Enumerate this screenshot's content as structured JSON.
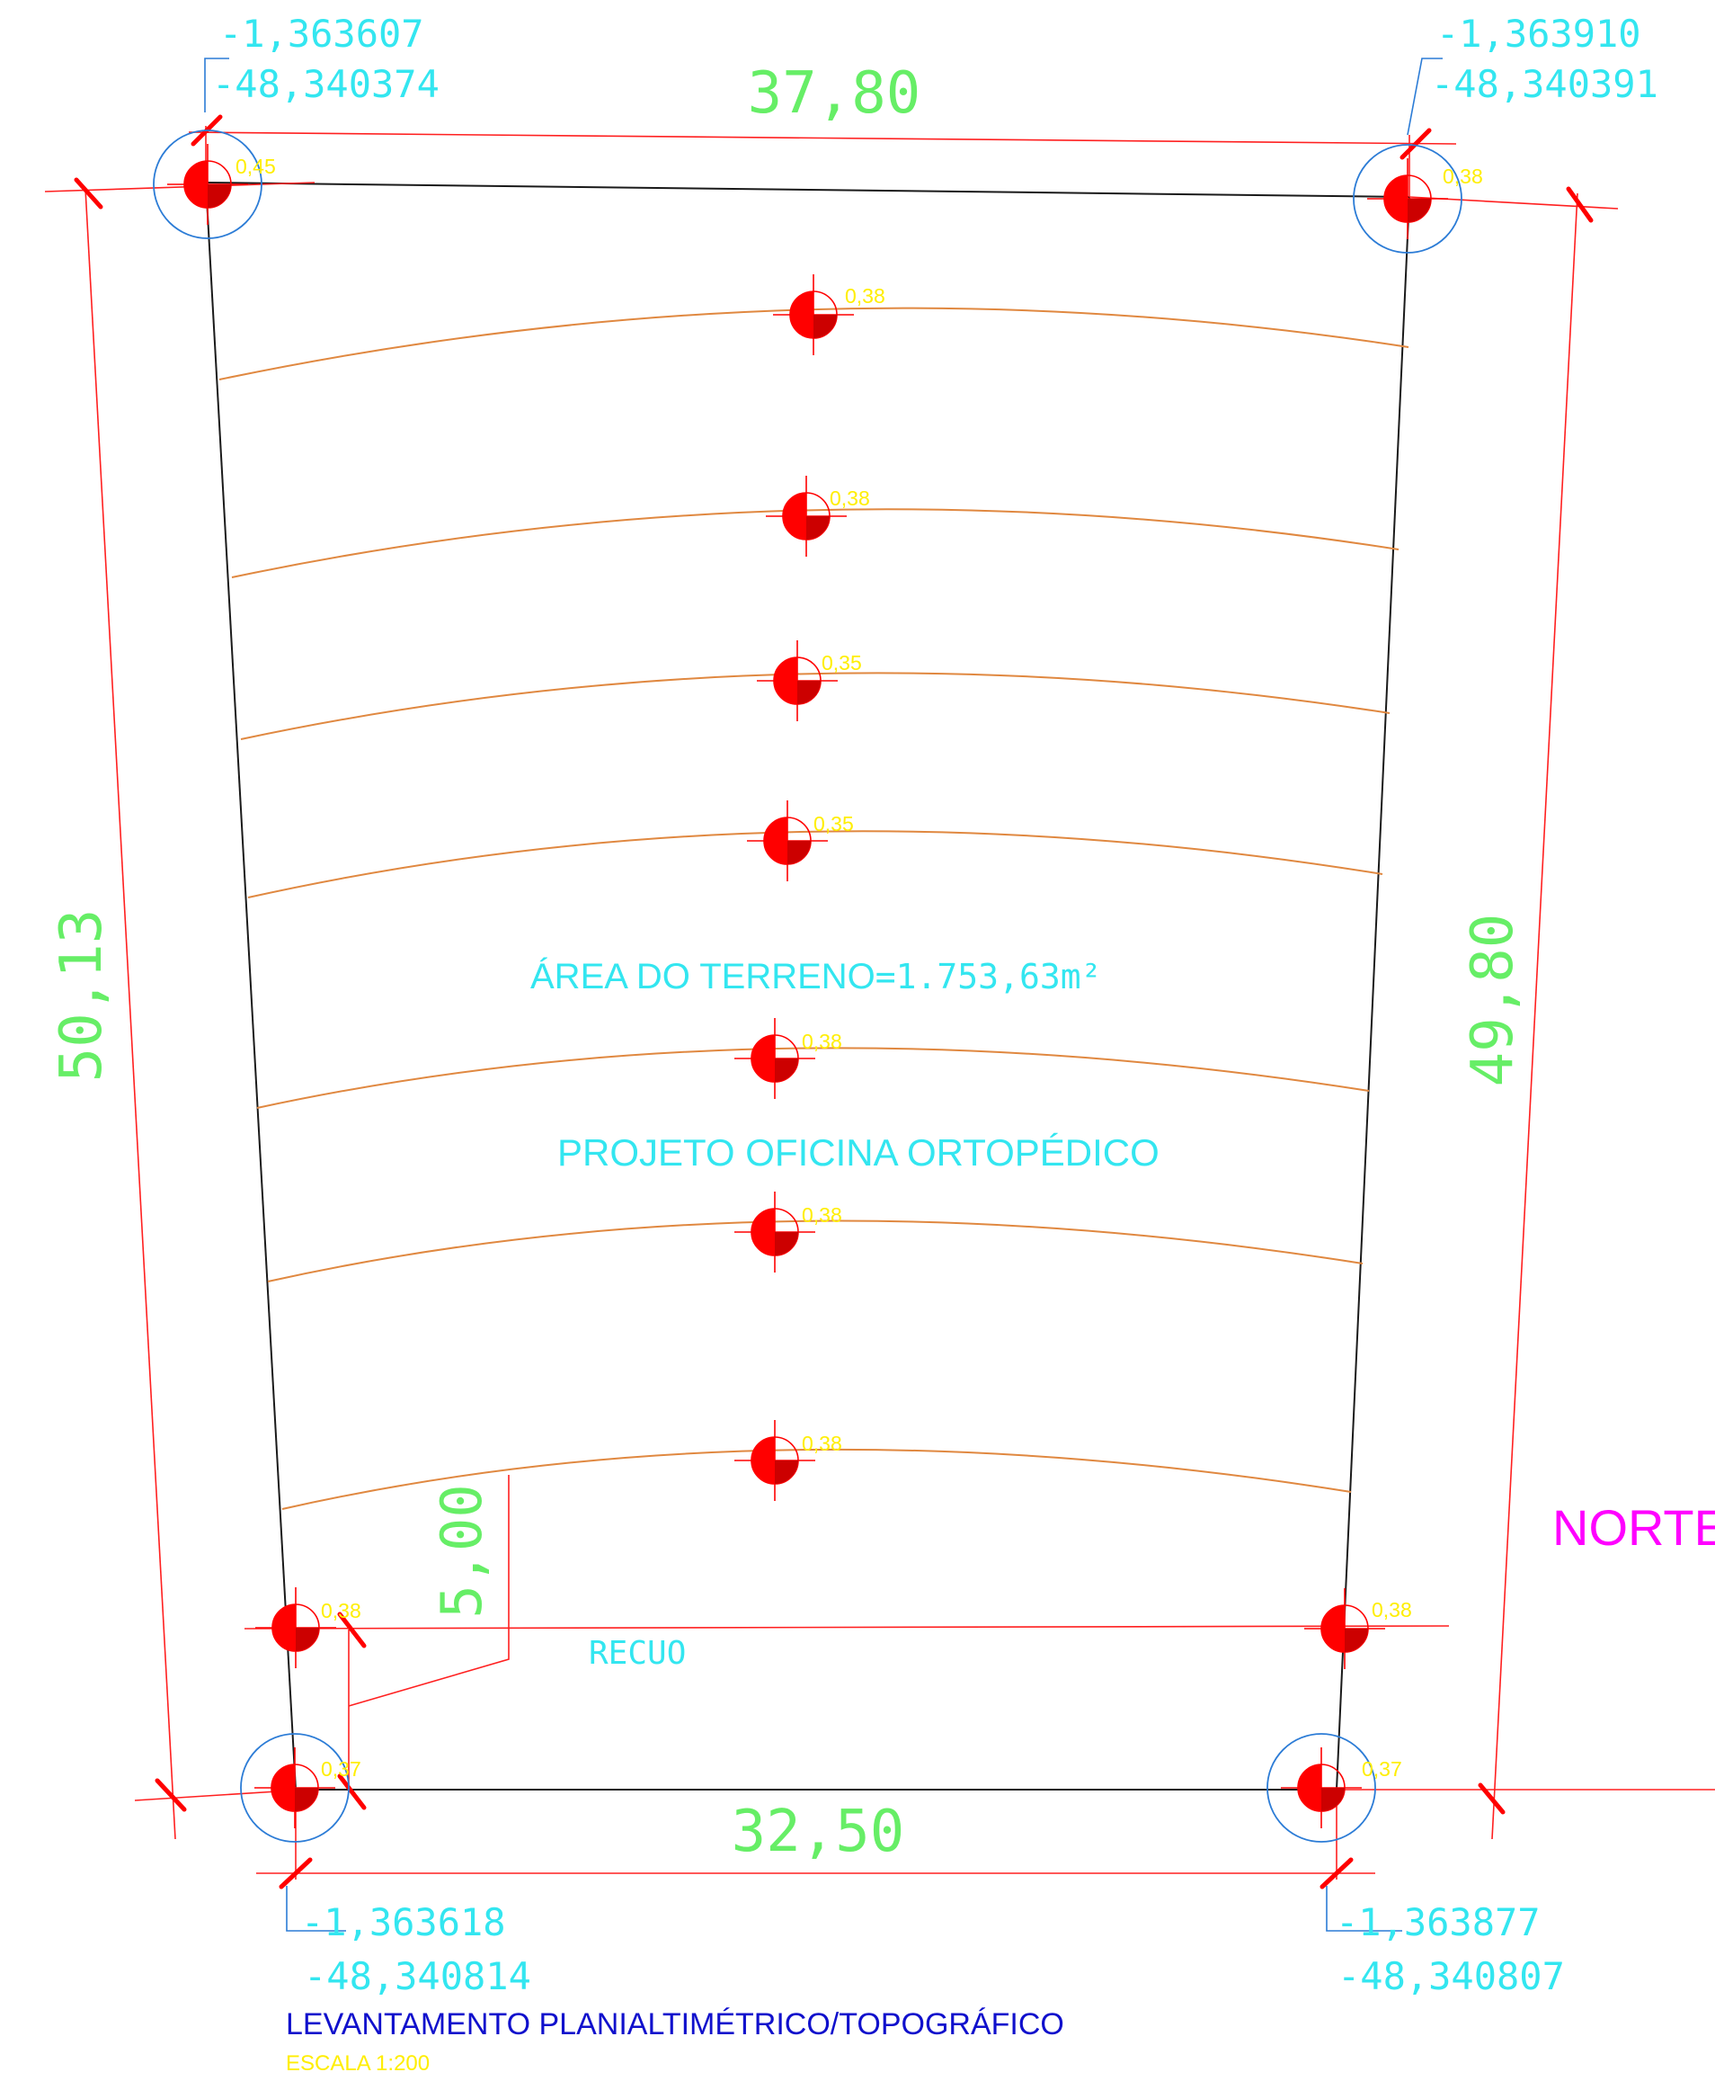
{
  "colors": {
    "boundary": "#1a1a1a",
    "dimension": "#ff2020",
    "dimension_text": "#66ee66",
    "coordinate_text": "#33e6f0",
    "elevation_text": "#ffee00",
    "contour": "#e08840",
    "marker": "#ff0000",
    "circle": "#2c7cd6",
    "title": "#1010cc",
    "north": "#ff00ff"
  },
  "icons": {
    "elevation_marker": "survey-point-icon",
    "corner_circle": "corner-benchmark-icon",
    "dimension_tick": "dimension-tick-icon"
  },
  "dimensions": {
    "top": "37,80",
    "bottom": "32,50",
    "left": "50,13",
    "right": "49,80",
    "setback": "5,00"
  },
  "corners": {
    "top_left": {
      "lat": "-1,363607",
      "lon": "-48,340374",
      "elevation": "0,45"
    },
    "top_right": {
      "lat": "-1,363910",
      "lon": "-48,340391",
      "elevation": "0,38"
    },
    "bottom_left": {
      "lat": "-1,363618",
      "lon": "-48,340814",
      "elevation": "0,37"
    },
    "bottom_right": {
      "lat": "-1,363877",
      "lon": "-48,340807",
      "elevation": "0,37"
    }
  },
  "spot_elevations": [
    "0,38",
    "0,38",
    "0,35",
    "0,35",
    "0,38",
    "0,38",
    "0,38"
  ],
  "setback_elevations": {
    "left": "0,38",
    "right": "0,38"
  },
  "labels": {
    "area_name": "ÁREA DO TERRENO",
    "area_value": "=1.753,63m²",
    "project": "PROJETO OFICINA ORTOPÉDICO",
    "setback": "RECUO",
    "north": "NORTE",
    "title": "LEVANTAMENTO PLANIALTIMÉTRICO/TOPOGRÁFICO",
    "scale": "ESCALA  1:200"
  }
}
